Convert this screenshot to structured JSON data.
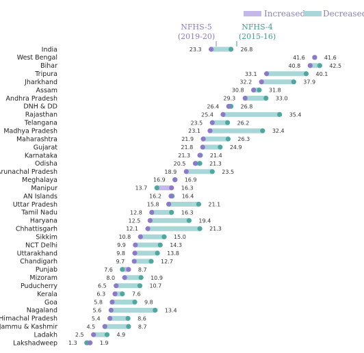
{
  "chart_data": {
    "type": "dumbbell",
    "legend": {
      "position": "top-right",
      "items": [
        {
          "label": "Increased",
          "color": "#c3b8e9"
        },
        {
          "label": "Decreased",
          "color": "#a9d6d6"
        }
      ]
    },
    "annotations": [
      {
        "label": "NFHS-5",
        "sublabel": "(2019-20)",
        "color": "#8c79c8"
      },
      {
        "label": "NFHS-4",
        "sublabel": "(2015-16)",
        "color": "#3f9a91"
      }
    ],
    "colors": {
      "nfhs5_dot": "#8c79c8",
      "nfhs4_dot": "#4fa89f",
      "increased_bar": "#c3b8e9",
      "decreased_bar": "#a9d6d6"
    },
    "x_range": [
      0,
      45
    ],
    "series_names": [
      "NFHS-5",
      "NFHS-4"
    ],
    "rows": [
      {
        "name": "India",
        "nfhs5": 23.3,
        "nfhs4": 26.8
      },
      {
        "name": "West Bengal",
        "nfhs5": 41.6,
        "nfhs4": 41.6
      },
      {
        "name": "Bihar",
        "nfhs5": 40.8,
        "nfhs4": 42.5
      },
      {
        "name": "Tripura",
        "nfhs5": 33.1,
        "nfhs4": 40.1
      },
      {
        "name": "Jharkhand",
        "nfhs5": 32.2,
        "nfhs4": 37.9
      },
      {
        "name": "Assam",
        "nfhs5": 30.8,
        "nfhs4": 31.8
      },
      {
        "name": "Andhra Pradesh",
        "nfhs5": 29.3,
        "nfhs4": 33.0
      },
      {
        "name": "DNH & DD",
        "nfhs5": 26.4,
        "nfhs4": 26.8
      },
      {
        "name": "Rajasthan",
        "nfhs5": 25.4,
        "nfhs4": 35.4
      },
      {
        "name": "Telangana",
        "nfhs5": 23.5,
        "nfhs4": 26.2
      },
      {
        "name": "Madhya Pradesh",
        "nfhs5": 23.1,
        "nfhs4": 32.4
      },
      {
        "name": "Maharashtra",
        "nfhs5": 21.9,
        "nfhs4": 26.3
      },
      {
        "name": "Gujarat",
        "nfhs5": 21.8,
        "nfhs4": 24.9
      },
      {
        "name": "Karnataka",
        "nfhs5": 21.3,
        "nfhs4": 21.4
      },
      {
        "name": "Odisha",
        "nfhs5": 20.5,
        "nfhs4": 21.3
      },
      {
        "name": "Arunachal Pradesh",
        "nfhs5": 18.9,
        "nfhs4": 23.5
      },
      {
        "name": "Meghalaya",
        "nfhs5": 16.9,
        "nfhs4": 16.9
      },
      {
        "name": "Manipur",
        "nfhs5": 16.3,
        "nfhs4": 13.7
      },
      {
        "name": "AN Islands",
        "nfhs5": 16.2,
        "nfhs4": 16.4
      },
      {
        "name": "Uttar Pradesh",
        "nfhs5": 15.8,
        "nfhs4": 21.1
      },
      {
        "name": "Tamil Nadu",
        "nfhs5": 12.8,
        "nfhs4": 16.3
      },
      {
        "name": "Haryana",
        "nfhs5": 12.5,
        "nfhs4": 19.4
      },
      {
        "name": "Chhattisgarh",
        "nfhs5": 12.1,
        "nfhs4": 21.3
      },
      {
        "name": "Sikkim",
        "nfhs5": 10.8,
        "nfhs4": 15.0
      },
      {
        "name": "NCT Delhi",
        "nfhs5": 9.9,
        "nfhs4": 14.3
      },
      {
        "name": "Uttarakhand",
        "nfhs5": 9.8,
        "nfhs4": 13.8
      },
      {
        "name": "Chandigarh",
        "nfhs5": 9.7,
        "nfhs4": 12.7
      },
      {
        "name": "Punjab",
        "nfhs5": 8.7,
        "nfhs4": 7.6
      },
      {
        "name": "Mizoram",
        "nfhs5": 8.0,
        "nfhs4": 10.9
      },
      {
        "name": "Puducherry",
        "nfhs5": 6.5,
        "nfhs4": 10.7
      },
      {
        "name": "Kerala",
        "nfhs5": 6.3,
        "nfhs4": 7.6
      },
      {
        "name": "Goa",
        "nfhs5": 5.8,
        "nfhs4": 9.8
      },
      {
        "name": "Nagaland",
        "nfhs5": 5.6,
        "nfhs4": 13.4
      },
      {
        "name": "Himachal Pradesh",
        "nfhs5": 5.4,
        "nfhs4": 8.6
      },
      {
        "name": "Jammu & Kashmir",
        "nfhs5": 4.5,
        "nfhs4": 8.7
      },
      {
        "name": "Ladakh",
        "nfhs5": 2.5,
        "nfhs4": 4.9
      },
      {
        "name": "Lakshadweep",
        "nfhs5": 1.9,
        "nfhs4": 1.3
      }
    ]
  }
}
